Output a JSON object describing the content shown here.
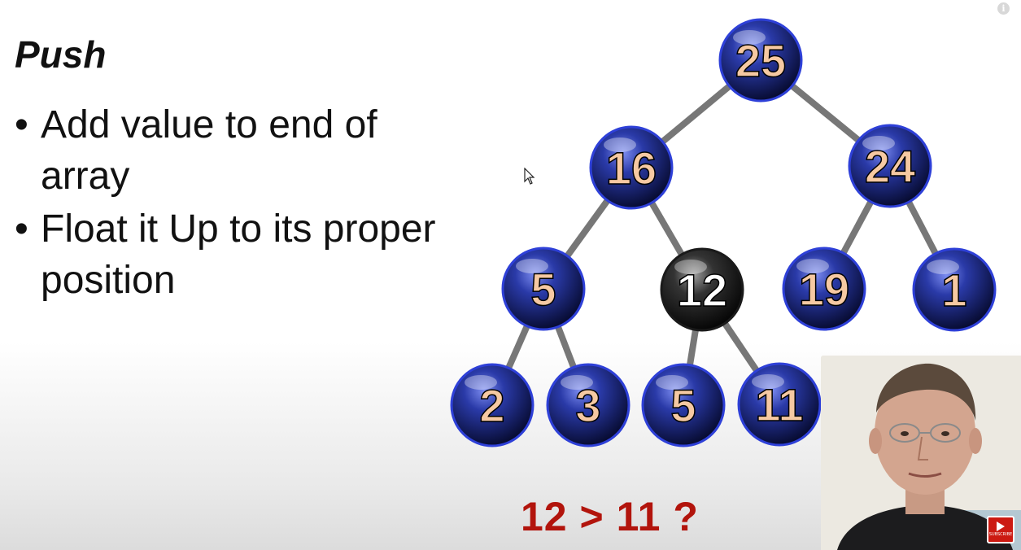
{
  "slide": {
    "title": "Push",
    "bullets": [
      "Add value to end of array",
      "Float it Up to its proper position"
    ],
    "bullet_glyph": "•",
    "comparison": "12 > 11 ?"
  },
  "tree": {
    "nodes": [
      {
        "value": "25",
        "highlight": false
      },
      {
        "value": "16",
        "highlight": false
      },
      {
        "value": "24",
        "highlight": false
      },
      {
        "value": "5",
        "highlight": false
      },
      {
        "value": "12",
        "highlight": true
      },
      {
        "value": "19",
        "highlight": false
      },
      {
        "value": "1",
        "highlight": false
      },
      {
        "value": "2",
        "highlight": false
      },
      {
        "value": "3",
        "highlight": false
      },
      {
        "value": "5",
        "highlight": false
      },
      {
        "value": "11",
        "highlight": false
      }
    ],
    "edges": [
      [
        0,
        1
      ],
      [
        0,
        2
      ],
      [
        1,
        3
      ],
      [
        1,
        4
      ],
      [
        2,
        5
      ],
      [
        2,
        6
      ],
      [
        3,
        7
      ],
      [
        3,
        8
      ],
      [
        4,
        9
      ],
      [
        4,
        10
      ]
    ]
  },
  "overlay": {
    "info_glyph": "i",
    "subscribe_label": "SUBSCRIBE",
    "cursor_icon": "mouse-pointer-icon",
    "webcam": "presenter-webcam"
  },
  "colors": {
    "node_fill": "#1a2a8c",
    "node_highlight": "#111111",
    "node_border": "#2e40d8",
    "node_text": "#f6c9a2",
    "node_text_highlight": "#ffffff",
    "edge": "#777777",
    "question": "#b2140c"
  }
}
